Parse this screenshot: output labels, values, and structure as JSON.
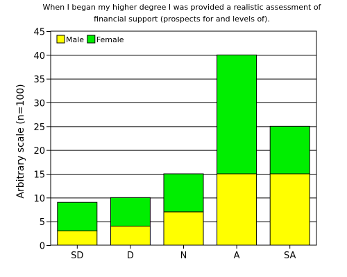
{
  "chart_data": {
    "type": "bar",
    "stacked": true,
    "title": "When I began my higher degree I was provided a realistic assessment of financial support (prospects for and levels of).",
    "xlabel": "",
    "ylabel": "Arbitrary scale (n=100)",
    "categories": [
      "SD",
      "D",
      "N",
      "A",
      "SA"
    ],
    "series": [
      {
        "name": "Male",
        "color": "#ffff00",
        "values": [
          3,
          4,
          7,
          15,
          15
        ]
      },
      {
        "name": "Female",
        "color": "#00ee00",
        "values": [
          6,
          6,
          8,
          25,
          10
        ]
      }
    ],
    "ylim": [
      0,
      45
    ],
    "yticks": [
      0,
      5,
      10,
      15,
      20,
      25,
      30,
      35,
      40,
      45
    ],
    "grid": true,
    "legend_position": "top-left"
  },
  "display": {
    "title_lines": [
      "When I began my higher degree I was provided a realistic assessment of",
      "financial support (prospects for and levels of)."
    ]
  }
}
